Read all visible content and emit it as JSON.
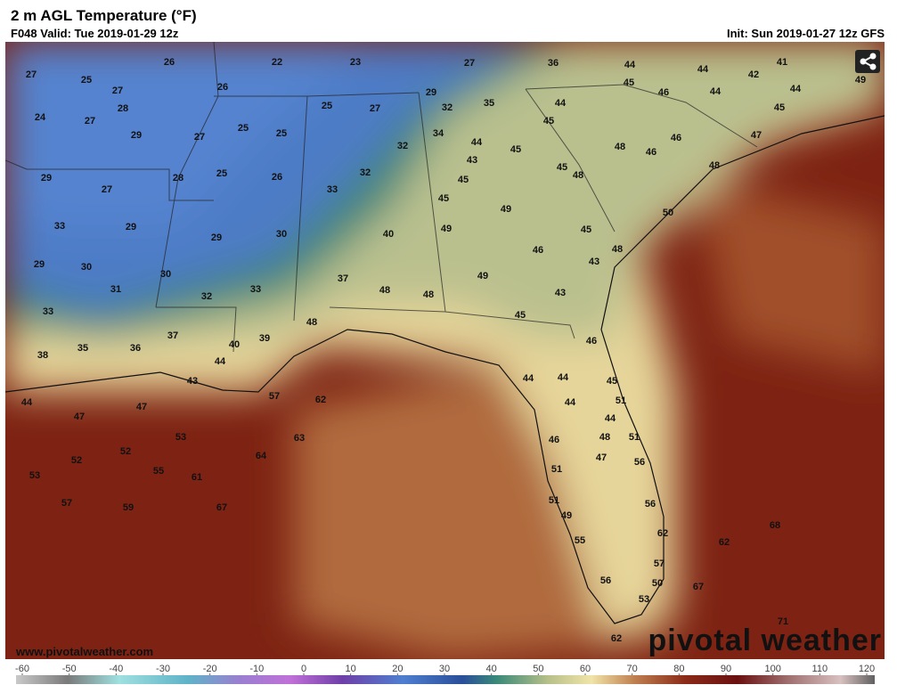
{
  "header": {
    "title": "2 m AGL Temperature (°F)",
    "valid": "F048 Valid: Tue 2019-01-29 12z",
    "init": "Init: Sun 2019-01-27 12z GFS"
  },
  "map": {
    "labels": [
      27,
      25,
      26,
      27,
      28,
      24,
      27,
      26,
      22,
      23,
      27,
      36,
      44,
      44,
      41,
      42,
      44,
      49,
      45,
      46,
      44,
      45,
      29,
      35,
      32,
      25,
      27,
      44,
      45,
      29,
      27,
      25,
      25,
      32,
      34,
      44,
      45,
      43,
      48,
      46,
      46,
      47,
      48,
      29,
      27,
      28,
      25,
      26,
      32,
      33,
      45,
      45,
      48,
      45,
      49,
      50,
      33,
      29,
      29,
      30,
      40,
      49,
      45,
      48,
      46,
      29,
      30,
      30,
      43,
      49,
      37,
      31,
      32,
      33,
      48,
      48,
      43,
      33,
      45,
      48,
      46,
      35,
      36,
      37,
      40,
      39,
      38,
      44,
      43,
      44,
      44,
      45,
      44,
      47,
      47,
      57,
      62,
      44,
      51,
      44,
      53,
      63,
      48,
      51,
      46,
      52,
      52,
      64,
      47,
      56,
      55,
      61,
      53,
      51,
      51,
      56,
      57,
      59,
      67,
      49,
      62,
      68,
      62,
      55,
      57,
      56,
      50,
      67,
      53,
      71,
      62
    ]
  },
  "colorbar": {
    "ticks": [
      -60,
      -50,
      -40,
      -30,
      -20,
      -10,
      0,
      10,
      20,
      30,
      40,
      50,
      60,
      70,
      80,
      90,
      100,
      110,
      120
    ]
  },
  "footer": {
    "url": "www.pivotalweather.com",
    "logo": "pivotal weather"
  }
}
